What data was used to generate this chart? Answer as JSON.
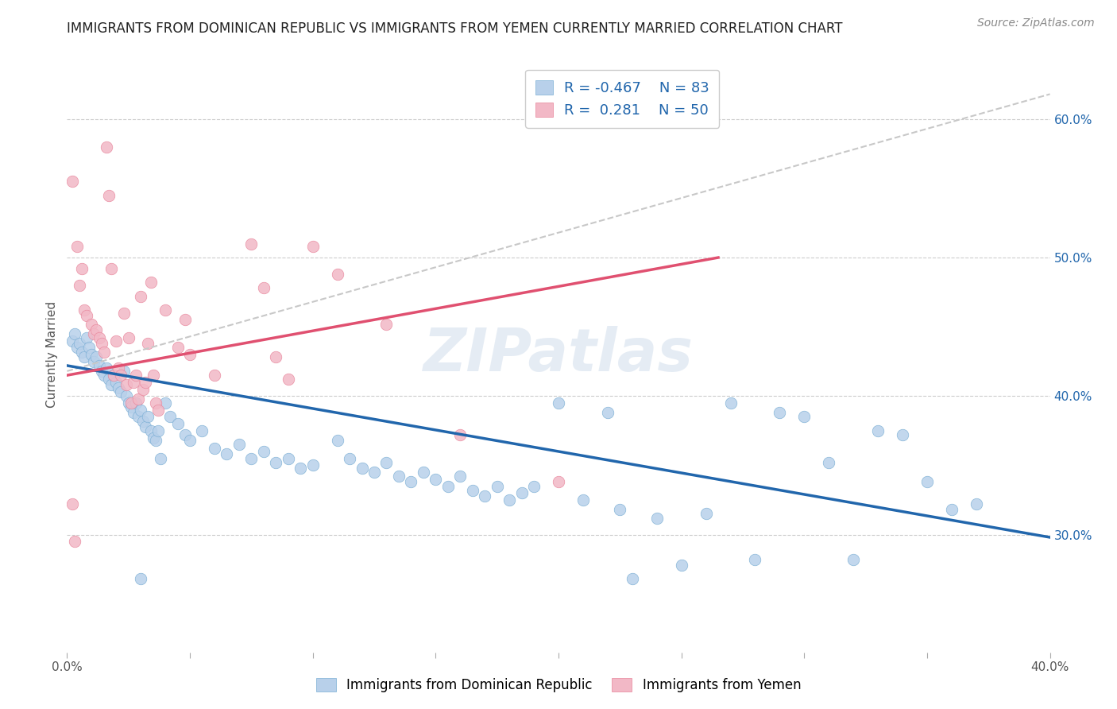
{
  "title": "IMMIGRANTS FROM DOMINICAN REPUBLIC VS IMMIGRANTS FROM YEMEN CURRENTLY MARRIED CORRELATION CHART",
  "source": "Source: ZipAtlas.com",
  "ylabel": "Currently Married",
  "right_ytick_vals": [
    0.3,
    0.4,
    0.5,
    0.6
  ],
  "x_min": 0.0,
  "x_max": 0.4,
  "y_min": 0.215,
  "y_max": 0.645,
  "blue_color": "#b8d0ea",
  "pink_color": "#f2b8c6",
  "blue_edge_color": "#7aaed4",
  "pink_edge_color": "#e8849a",
  "blue_line_color": "#2166ac",
  "pink_line_color": "#e05070",
  "dashed_line_color": "#c8c8c8",
  "watermark": "ZIPatlas",
  "blue_scatter": [
    [
      0.002,
      0.44
    ],
    [
      0.003,
      0.445
    ],
    [
      0.004,
      0.435
    ],
    [
      0.005,
      0.438
    ],
    [
      0.006,
      0.432
    ],
    [
      0.007,
      0.428
    ],
    [
      0.008,
      0.442
    ],
    [
      0.009,
      0.435
    ],
    [
      0.01,
      0.43
    ],
    [
      0.011,
      0.425
    ],
    [
      0.012,
      0.428
    ],
    [
      0.013,
      0.422
    ],
    [
      0.014,
      0.418
    ],
    [
      0.015,
      0.415
    ],
    [
      0.016,
      0.42
    ],
    [
      0.017,
      0.412
    ],
    [
      0.018,
      0.408
    ],
    [
      0.019,
      0.415
    ],
    [
      0.02,
      0.41
    ],
    [
      0.021,
      0.406
    ],
    [
      0.022,
      0.403
    ],
    [
      0.023,
      0.418
    ],
    [
      0.024,
      0.4
    ],
    [
      0.025,
      0.395
    ],
    [
      0.026,
      0.392
    ],
    [
      0.027,
      0.388
    ],
    [
      0.028,
      0.395
    ],
    [
      0.029,
      0.385
    ],
    [
      0.03,
      0.39
    ],
    [
      0.031,
      0.382
    ],
    [
      0.032,
      0.378
    ],
    [
      0.033,
      0.385
    ],
    [
      0.034,
      0.375
    ],
    [
      0.035,
      0.37
    ],
    [
      0.036,
      0.368
    ],
    [
      0.037,
      0.375
    ],
    [
      0.04,
      0.395
    ],
    [
      0.042,
      0.385
    ],
    [
      0.045,
      0.38
    ],
    [
      0.048,
      0.372
    ],
    [
      0.05,
      0.368
    ],
    [
      0.055,
      0.375
    ],
    [
      0.06,
      0.362
    ],
    [
      0.065,
      0.358
    ],
    [
      0.07,
      0.365
    ],
    [
      0.075,
      0.355
    ],
    [
      0.08,
      0.36
    ],
    [
      0.085,
      0.352
    ],
    [
      0.09,
      0.355
    ],
    [
      0.095,
      0.348
    ],
    [
      0.1,
      0.35
    ],
    [
      0.11,
      0.368
    ],
    [
      0.115,
      0.355
    ],
    [
      0.12,
      0.348
    ],
    [
      0.125,
      0.345
    ],
    [
      0.13,
      0.352
    ],
    [
      0.135,
      0.342
    ],
    [
      0.14,
      0.338
    ],
    [
      0.145,
      0.345
    ],
    [
      0.15,
      0.34
    ],
    [
      0.155,
      0.335
    ],
    [
      0.16,
      0.342
    ],
    [
      0.165,
      0.332
    ],
    [
      0.17,
      0.328
    ],
    [
      0.175,
      0.335
    ],
    [
      0.18,
      0.325
    ],
    [
      0.185,
      0.33
    ],
    [
      0.19,
      0.335
    ],
    [
      0.2,
      0.395
    ],
    [
      0.21,
      0.325
    ],
    [
      0.22,
      0.388
    ],
    [
      0.225,
      0.318
    ],
    [
      0.23,
      0.268
    ],
    [
      0.24,
      0.312
    ],
    [
      0.25,
      0.278
    ],
    [
      0.26,
      0.315
    ],
    [
      0.27,
      0.395
    ],
    [
      0.28,
      0.282
    ],
    [
      0.29,
      0.388
    ],
    [
      0.3,
      0.385
    ],
    [
      0.31,
      0.352
    ],
    [
      0.32,
      0.282
    ],
    [
      0.33,
      0.375
    ],
    [
      0.34,
      0.372
    ],
    [
      0.35,
      0.338
    ],
    [
      0.36,
      0.318
    ],
    [
      0.37,
      0.322
    ],
    [
      0.03,
      0.268
    ],
    [
      0.038,
      0.355
    ]
  ],
  "pink_scatter": [
    [
      0.002,
      0.555
    ],
    [
      0.003,
      0.295
    ],
    [
      0.004,
      0.508
    ],
    [
      0.005,
      0.48
    ],
    [
      0.006,
      0.492
    ],
    [
      0.007,
      0.462
    ],
    [
      0.008,
      0.458
    ],
    [
      0.01,
      0.452
    ],
    [
      0.011,
      0.445
    ],
    [
      0.012,
      0.448
    ],
    [
      0.013,
      0.442
    ],
    [
      0.014,
      0.438
    ],
    [
      0.015,
      0.432
    ],
    [
      0.016,
      0.58
    ],
    [
      0.017,
      0.545
    ],
    [
      0.018,
      0.492
    ],
    [
      0.019,
      0.415
    ],
    [
      0.02,
      0.44
    ],
    [
      0.021,
      0.42
    ],
    [
      0.022,
      0.415
    ],
    [
      0.023,
      0.46
    ],
    [
      0.024,
      0.408
    ],
    [
      0.025,
      0.442
    ],
    [
      0.026,
      0.395
    ],
    [
      0.027,
      0.41
    ],
    [
      0.028,
      0.415
    ],
    [
      0.029,
      0.398
    ],
    [
      0.03,
      0.472
    ],
    [
      0.031,
      0.405
    ],
    [
      0.032,
      0.41
    ],
    [
      0.033,
      0.438
    ],
    [
      0.034,
      0.482
    ],
    [
      0.035,
      0.415
    ],
    [
      0.036,
      0.395
    ],
    [
      0.037,
      0.39
    ],
    [
      0.04,
      0.462
    ],
    [
      0.045,
      0.435
    ],
    [
      0.048,
      0.455
    ],
    [
      0.05,
      0.43
    ],
    [
      0.06,
      0.415
    ],
    [
      0.075,
      0.51
    ],
    [
      0.08,
      0.478
    ],
    [
      0.085,
      0.428
    ],
    [
      0.09,
      0.412
    ],
    [
      0.1,
      0.508
    ],
    [
      0.11,
      0.488
    ],
    [
      0.13,
      0.452
    ],
    [
      0.16,
      0.372
    ],
    [
      0.002,
      0.322
    ],
    [
      0.2,
      0.338
    ]
  ],
  "blue_trendline": [
    [
      0.0,
      0.422
    ],
    [
      0.4,
      0.298
    ]
  ],
  "pink_trendline": [
    [
      0.0,
      0.415
    ],
    [
      0.265,
      0.5
    ]
  ],
  "dashed_trendline": [
    [
      0.0,
      0.418
    ],
    [
      0.4,
      0.618
    ]
  ]
}
